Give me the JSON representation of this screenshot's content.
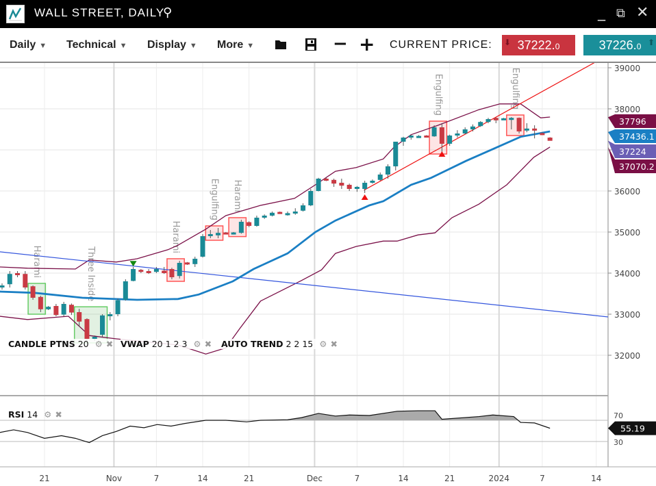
{
  "window": {
    "title": "WALL STREET, DAILY",
    "search_icon": "magnifier-icon",
    "minimize": "_",
    "restore": "⧉",
    "close": "✕"
  },
  "toolbar": {
    "menus": [
      "Daily",
      "Technical",
      "Display",
      "More"
    ],
    "open_icon": "folder-icon",
    "save_icon": "floppy-icon",
    "zoom_out": "−",
    "zoom_in": "+",
    "current_price_label": "CURRENT PRICE:",
    "sell": {
      "main": "37222.",
      "small": "0",
      "color": "#c9343f"
    },
    "buy": {
      "main": "37226.",
      "small": "0",
      "color": "#1a8f9a"
    }
  },
  "indicators": {
    "candle": {
      "name": "CANDLE PTNS",
      "params": "20"
    },
    "vwap": {
      "name": "VWAP",
      "params": "20 1 2 3"
    },
    "autotrend": {
      "name": "AUTO TREND",
      "params": "2 2 15"
    },
    "rsi": {
      "name": "RSI",
      "params": "14"
    }
  },
  "chart_data": {
    "type": "candlestick",
    "y_ticks": [
      32000,
      33000,
      34000,
      35000,
      36000,
      37000,
      38000,
      39000
    ],
    "y_tick_labels": [
      "32000",
      "33000",
      "34000",
      "35000",
      "36000",
      "",
      "38000",
      "39000"
    ],
    "ylim": [
      31800,
      39120
    ],
    "x_ticks": [
      {
        "label": "21",
        "at": 5.5
      },
      {
        "label": "Nov",
        "at": 14.5
      },
      {
        "label": "7",
        "at": 20
      },
      {
        "label": "14",
        "at": 26
      },
      {
        "label": "21",
        "at": 32
      },
      {
        "label": "Dec",
        "at": 40.5
      },
      {
        "label": "7",
        "at": 46
      },
      {
        "label": "14",
        "at": 52
      },
      {
        "label": "21",
        "at": 58
      },
      {
        "label": "2024",
        "at": 64.4
      },
      {
        "label": "7",
        "at": 70
      },
      {
        "label": "14",
        "at": 77
      }
    ],
    "candles_ohlc": [
      [
        33650,
        33750,
        33600,
        33700
      ],
      [
        33730,
        34050,
        33650,
        33980
      ],
      [
        34000,
        34050,
        33900,
        33950
      ],
      [
        33980,
        34050,
        33600,
        33650
      ],
      [
        33680,
        33700,
        33350,
        33400
      ],
      [
        33420,
        33450,
        33050,
        33120
      ],
      [
        33120,
        33200,
        33100,
        33180
      ],
      [
        33200,
        33250,
        32950,
        32980
      ],
      [
        32990,
        33300,
        32950,
        33250
      ],
      [
        33230,
        33260,
        32980,
        33040
      ],
      [
        33050,
        33130,
        32700,
        32820
      ],
      [
        32880,
        32900,
        32350,
        32400
      ],
      [
        32400,
        32480,
        32350,
        32450
      ],
      [
        32500,
        33000,
        32450,
        32970
      ],
      [
        32960,
        33050,
        32850,
        33000
      ],
      [
        33000,
        33380,
        32950,
        33340
      ],
      [
        33350,
        33850,
        33330,
        33800
      ],
      [
        33810,
        34150,
        33800,
        34100
      ],
      [
        34080,
        34100,
        34000,
        34050
      ],
      [
        34050,
        34100,
        33980,
        34030
      ],
      [
        34030,
        34150,
        34000,
        34100
      ],
      [
        34060,
        34150,
        33980,
        34000
      ],
      [
        34100,
        34130,
        33850,
        33900
      ],
      [
        33930,
        34300,
        33870,
        34250
      ],
      [
        34260,
        34270,
        34200,
        34220
      ],
      [
        34220,
        34400,
        34150,
        34350
      ],
      [
        34400,
        34950,
        34380,
        34900
      ],
      [
        34900,
        35050,
        34850,
        34950
      ],
      [
        34920,
        35100,
        34850,
        34980
      ],
      [
        34990,
        35000,
        34950,
        34960
      ],
      [
        34960,
        35000,
        34940,
        34990
      ],
      [
        34980,
        35300,
        34960,
        35250
      ],
      [
        35240,
        35260,
        35120,
        35150
      ],
      [
        35150,
        35400,
        35130,
        35350
      ],
      [
        35350,
        35430,
        35320,
        35400
      ],
      [
        35400,
        35500,
        35380,
        35470
      ],
      [
        35490,
        35500,
        35440,
        35450
      ],
      [
        35420,
        35500,
        35400,
        35460
      ],
      [
        35450,
        35580,
        35420,
        35500
      ],
      [
        35520,
        35700,
        35500,
        35650
      ],
      [
        35650,
        36050,
        35630,
        36000
      ],
      [
        36000,
        36320,
        35990,
        36300
      ],
      [
        36300,
        36320,
        36240,
        36250
      ],
      [
        36270,
        36300,
        36100,
        36180
      ],
      [
        36200,
        36300,
        36050,
        36130
      ],
      [
        36150,
        36180,
        36000,
        36050
      ],
      [
        36050,
        36120,
        35980,
        36100
      ],
      [
        36050,
        36250,
        35950,
        36200
      ],
      [
        36200,
        36280,
        36180,
        36250
      ],
      [
        36270,
        36450,
        36250,
        36400
      ],
      [
        36400,
        36650,
        36300,
        36600
      ],
      [
        36600,
        37200,
        36500,
        37200
      ],
      [
        37200,
        37320,
        37100,
        37300
      ],
      [
        37320,
        37370,
        37250,
        37350
      ],
      [
        37320,
        37360,
        37300,
        37340
      ],
      [
        37350,
        37360,
        37310,
        37320
      ],
      [
        37330,
        37600,
        37320,
        37550
      ],
      [
        37550,
        37650,
        36950,
        37150
      ],
      [
        37150,
        37370,
        37100,
        37350
      ],
      [
        37350,
        37480,
        37300,
        37400
      ],
      [
        37400,
        37550,
        37380,
        37500
      ],
      [
        37500,
        37620,
        37450,
        37570
      ],
      [
        37580,
        37700,
        37560,
        37680
      ],
      [
        37680,
        37780,
        37650,
        37750
      ],
      [
        37780,
        37790,
        37650,
        37720
      ],
      [
        37750,
        37780,
        37740,
        37770
      ],
      [
        37740,
        37800,
        37500,
        37780
      ],
      [
        37780,
        37790,
        37400,
        37450
      ],
      [
        37470,
        37650,
        37430,
        37520
      ],
      [
        37520,
        37600,
        37280,
        37470
      ],
      [
        37410,
        37430,
        37360,
        37380
      ],
      [
        37300,
        37310,
        37230,
        37222
      ]
    ],
    "colors": {
      "up": "#1a8a96",
      "down": "#c93a44",
      "vwap": "#1a7fc4",
      "band": "#7a1048",
      "trend_down": "#3355dd",
      "trend_up": "#ee1111"
    },
    "vwap_line": [
      [
        -0.3,
        33550
      ],
      [
        4.2,
        33520
      ],
      [
        10.4,
        33400
      ],
      [
        17.5,
        33350
      ],
      [
        22.8,
        33370
      ],
      [
        25.5,
        33480
      ],
      [
        29.9,
        33800
      ],
      [
        32.6,
        34100
      ],
      [
        37,
        34480
      ],
      [
        40.6,
        35000
      ],
      [
        43.2,
        35280
      ],
      [
        47.6,
        35650
      ],
      [
        49.4,
        35750
      ],
      [
        53,
        36150
      ],
      [
        55.6,
        36320
      ],
      [
        60.1,
        36730
      ],
      [
        63.6,
        37020
      ],
      [
        67.2,
        37320
      ],
      [
        71,
        37450
      ]
    ],
    "upper_band": [
      [
        -0.3,
        34150
      ],
      [
        3.3,
        34120
      ],
      [
        9.5,
        34100
      ],
      [
        11.3,
        34320
      ],
      [
        14.8,
        34270
      ],
      [
        17.5,
        34350
      ],
      [
        21.5,
        34570
      ],
      [
        22.8,
        34680
      ],
      [
        26.4,
        35070
      ],
      [
        29,
        35400
      ],
      [
        33.5,
        35650
      ],
      [
        37.9,
        35820
      ],
      [
        40.6,
        36150
      ],
      [
        43.2,
        36480
      ],
      [
        45.9,
        36570
      ],
      [
        49.4,
        36780
      ],
      [
        50.8,
        37070
      ],
      [
        53,
        37370
      ],
      [
        56.5,
        37600
      ],
      [
        61.8,
        37980
      ],
      [
        64.5,
        38120
      ],
      [
        67.2,
        38120
      ],
      [
        69.8,
        37780
      ],
      [
        71,
        37800
      ]
    ],
    "lower_band": [
      [
        -0.3,
        32950
      ],
      [
        3.3,
        32870
      ],
      [
        8.6,
        32950
      ],
      [
        11.3,
        32480
      ],
      [
        14.8,
        32400
      ],
      [
        22.8,
        32250
      ],
      [
        26.4,
        32030
      ],
      [
        29,
        32180
      ],
      [
        30.8,
        32650
      ],
      [
        33.5,
        33320
      ],
      [
        35.2,
        33480
      ],
      [
        38.8,
        33820
      ],
      [
        41.4,
        34080
      ],
      [
        43.2,
        34480
      ],
      [
        45.9,
        34650
      ],
      [
        49.4,
        34780
      ],
      [
        51.2,
        34780
      ],
      [
        53.9,
        34930
      ],
      [
        56.1,
        34980
      ],
      [
        58.3,
        35350
      ],
      [
        61.8,
        35680
      ],
      [
        65.4,
        36150
      ],
      [
        68.9,
        36820
      ],
      [
        71,
        37070
      ]
    ],
    "trend_lines": [
      {
        "from": [
          -0.3,
          34520
        ],
        "to": [
          78.7,
          32930
        ],
        "color": "#3355dd"
      },
      {
        "from": [
          46.9,
          36020
        ],
        "to": [
          77,
          39150
        ],
        "color": "#ee1111"
      }
    ],
    "signals": [
      {
        "at": 17,
        "price": 34230,
        "dir": "down",
        "color": "#118811"
      },
      {
        "at": 47,
        "price": 35850,
        "dir": "up",
        "color": "#ee1111"
      },
      {
        "at": 57,
        "price": 36900,
        "dir": "up",
        "color": "#ee1111"
      }
    ],
    "patterns": [
      {
        "from": 4,
        "to": 5,
        "kind": "bull",
        "label": "Harami"
      },
      {
        "from": 10,
        "to": 13,
        "kind": "bull",
        "label": "Three Inside"
      },
      {
        "from": 22,
        "to": 23,
        "kind": "bear",
        "label": "Harami"
      },
      {
        "from": 27,
        "to": 28,
        "kind": "bear",
        "label": "Engulfing"
      },
      {
        "from": 30,
        "to": 31,
        "kind": "bear",
        "label": "Harami"
      },
      {
        "from": 56,
        "to": 57,
        "kind": "bear",
        "label": "Engulfing"
      },
      {
        "from": 66,
        "to": 67,
        "kind": "bear",
        "label": "Engulfing"
      }
    ],
    "price_tags": [
      {
        "label": "37796",
        "value": 37796,
        "color": "#7a0f45"
      },
      {
        "label": "37436.1",
        "value": 37436.1,
        "color": "#1a7fc4"
      },
      {
        "label": "37070.2",
        "value": 37070.2,
        "color": "#7a0f45"
      },
      {
        "label": "37224",
        "value": 37224,
        "color": "#6b5fb5"
      }
    ],
    "rsi": {
      "levels": [
        70,
        30
      ],
      "level_labels": [
        "70",
        "30"
      ],
      "last_label": "55.19",
      "values": [
        [
          -0.3,
          47
        ],
        [
          1.5,
          52
        ],
        [
          3.3,
          47
        ],
        [
          5.5,
          36
        ],
        [
          7.7,
          41
        ],
        [
          9.5,
          36
        ],
        [
          11.3,
          28
        ],
        [
          13.0,
          41
        ],
        [
          14.8,
          49
        ],
        [
          16.6,
          59
        ],
        [
          18.4,
          56
        ],
        [
          20.1,
          62
        ],
        [
          21.9,
          59
        ],
        [
          23.7,
          64
        ],
        [
          26.4,
          70
        ],
        [
          29,
          70
        ],
        [
          31.7,
          67
        ],
        [
          33.5,
          70
        ],
        [
          37,
          71
        ],
        [
          38.8,
          75
        ],
        [
          41,
          83
        ],
        [
          43.2,
          78
        ],
        [
          45,
          80
        ],
        [
          47.6,
          79
        ],
        [
          51.2,
          87
        ],
        [
          53.9,
          88
        ],
        [
          56.1,
          88
        ],
        [
          57,
          72
        ],
        [
          61.8,
          77
        ],
        [
          63.6,
          80
        ],
        [
          66.3,
          77
        ],
        [
          67.2,
          66
        ],
        [
          69,
          65
        ],
        [
          71,
          55
        ]
      ]
    }
  }
}
